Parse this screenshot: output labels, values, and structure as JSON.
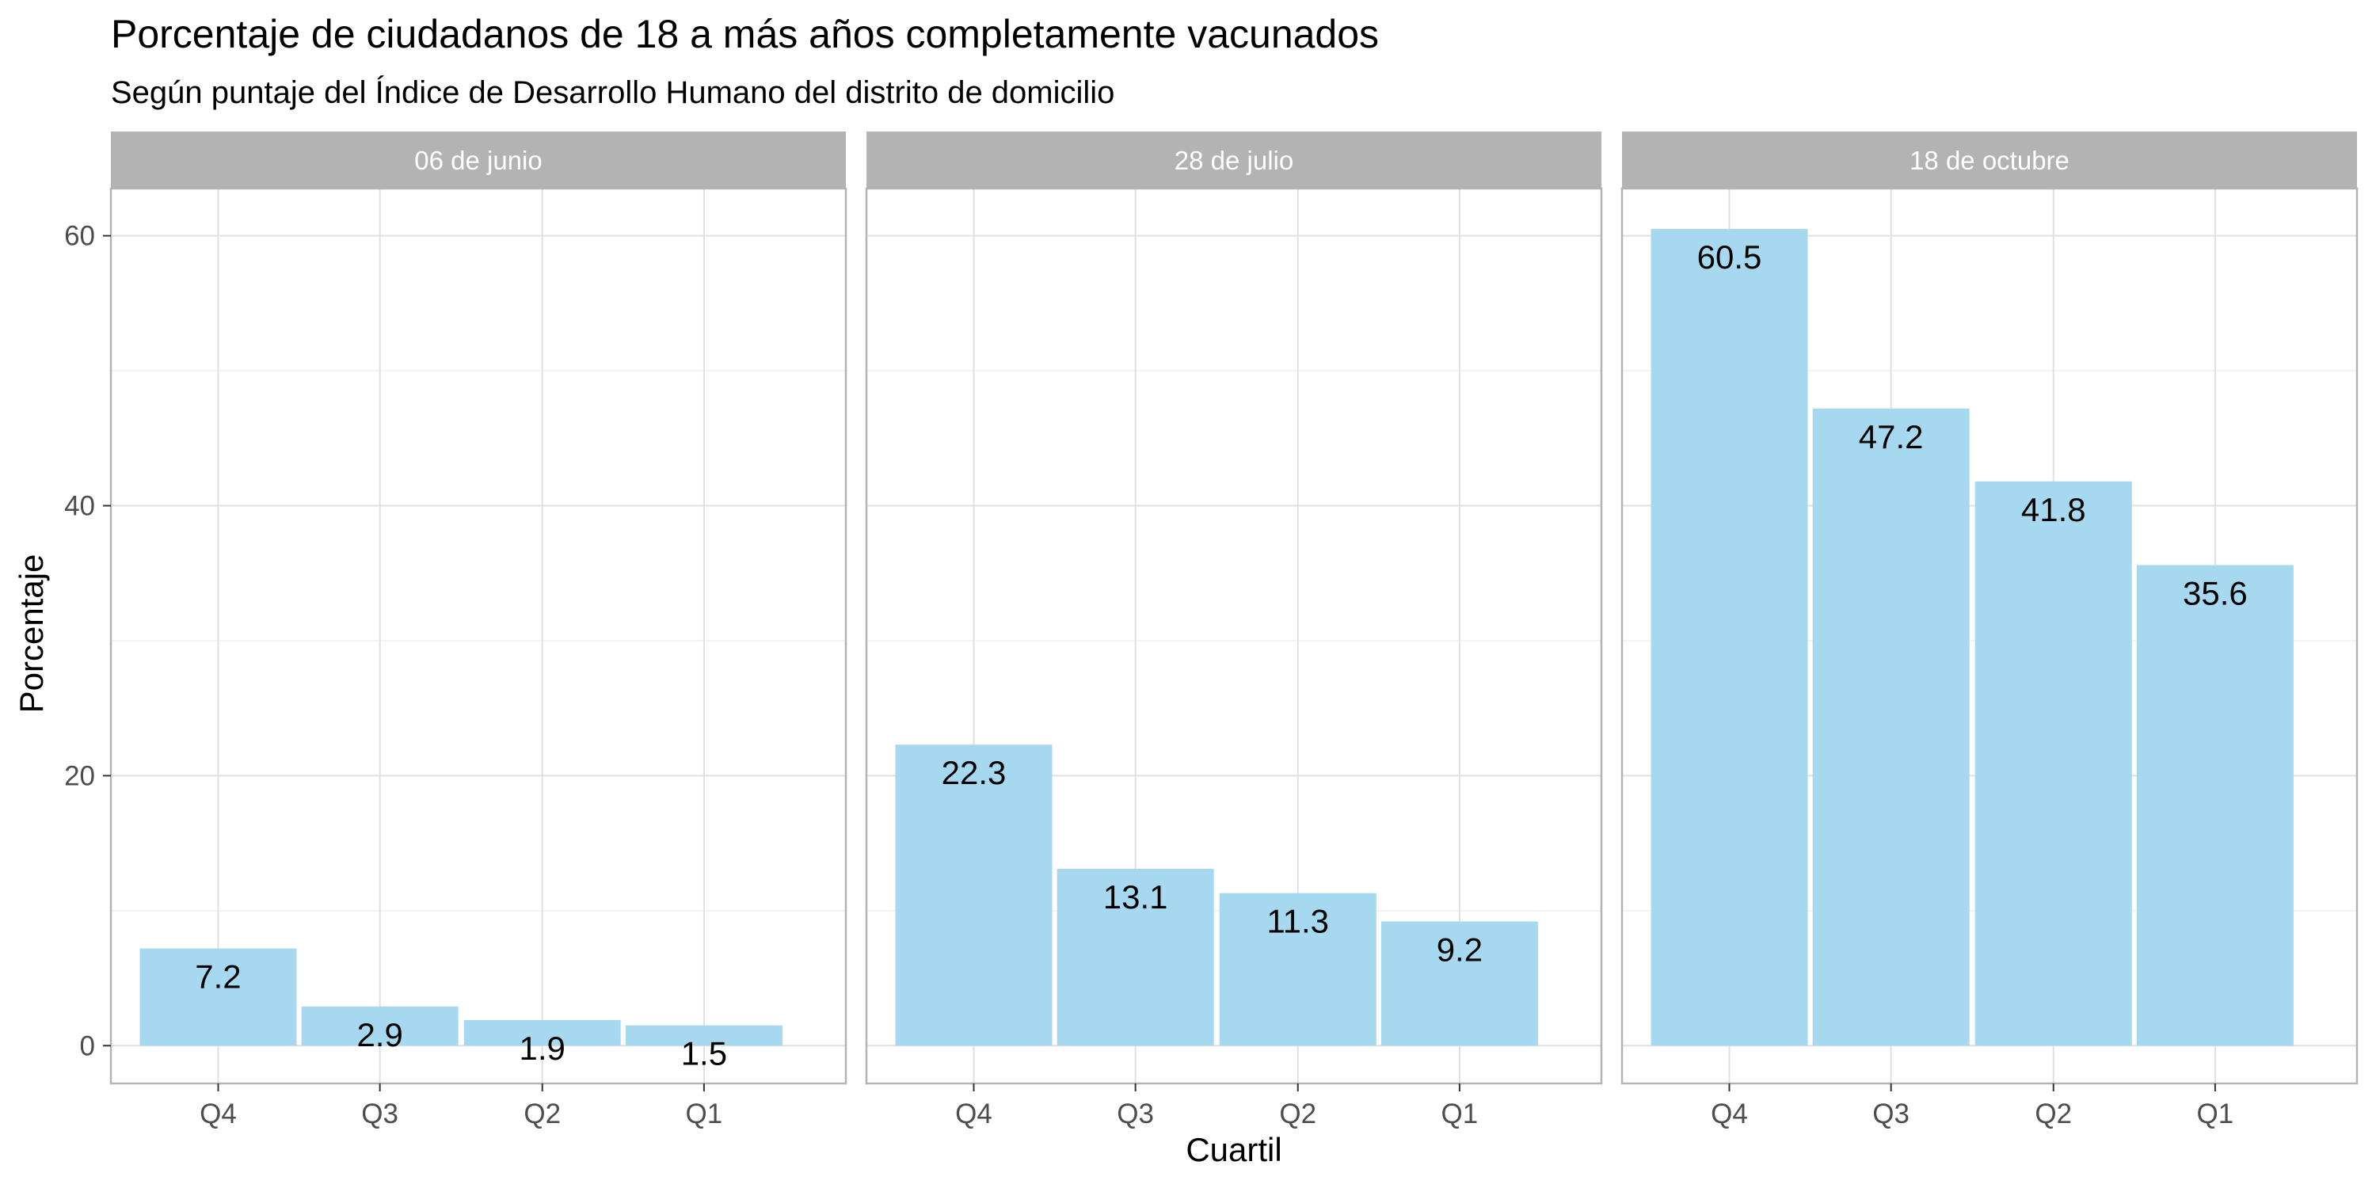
{
  "chart_data": {
    "type": "bar",
    "title": "Porcentaje de ciudadanos de 18 a más años completamente vacunados",
    "subtitle": "Según puntaje del Índice de Desarrollo Humano del distrito de domicilio",
    "xlabel": "Cuartil",
    "ylabel": "Porcentaje",
    "categories": [
      "Q4",
      "Q3",
      "Q2",
      "Q1"
    ],
    "ylim": [
      -2.8,
      63.5
    ],
    "yticks": [
      0,
      20,
      40,
      60
    ],
    "grid": true,
    "legend": "none",
    "bar_color": "#a6d8ef",
    "strip_color": "#b3b3b3",
    "panel_border_color": "#b3b3b3",
    "grid_color": "#e0e0e0",
    "facets": [
      {
        "name": "06 de junio",
        "values": [
          7.2,
          2.9,
          1.9,
          1.5
        ]
      },
      {
        "name": "28 de julio",
        "values": [
          22.3,
          13.1,
          11.3,
          9.2
        ]
      },
      {
        "name": "18 de octubre",
        "values": [
          60.5,
          47.2,
          41.8,
          35.6
        ]
      }
    ]
  }
}
